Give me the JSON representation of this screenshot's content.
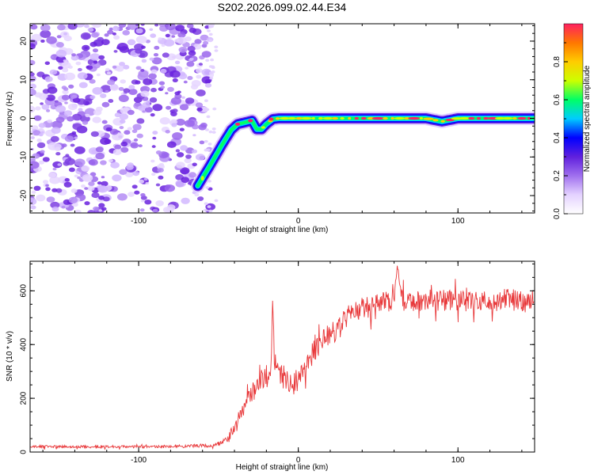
{
  "chart_data": [
    {
      "type": "heatmap",
      "title": "S202.2026.099.02.44.E34",
      "xlabel": "Height of straight line (km)",
      "ylabel": "Frequency (Hz)",
      "xlim": [
        -168,
        148
      ],
      "ylim": [
        -24.5,
        24.5
      ],
      "xticks": [
        -100,
        0,
        100
      ],
      "yticks": [
        -20,
        -10,
        0,
        10,
        20
      ],
      "noise_region_x": [
        -168,
        -58
      ],
      "ridge": {
        "x": [
          -63,
          -55,
          -48,
          -42,
          -38,
          -33,
          -29,
          -26,
          -23,
          -20,
          -16,
          -12,
          0,
          20,
          40,
          60,
          80,
          90,
          100,
          120,
          148
        ],
        "freq": [
          -17.5,
          -12,
          -7,
          -3,
          -1.5,
          -1,
          -0.6,
          -2.8,
          -2.8,
          -1.5,
          -0.2,
          0,
          0,
          0,
          0,
          0,
          0,
          -0.8,
          0,
          0,
          0
        ]
      },
      "colorbar": {
        "label": "Normalized spectral amplitude",
        "range": [
          0.0,
          1.0
        ],
        "ticks": [
          0.0,
          0.2,
          0.4,
          0.6,
          0.8
        ],
        "colormap": [
          "#ffffff",
          "#e4d2ff",
          "#a070ee",
          "#6020dd",
          "#0000ff",
          "#00ccff",
          "#00ff66",
          "#ccff00",
          "#ffcc00",
          "#ff7700",
          "#ff2060"
        ]
      }
    },
    {
      "type": "line",
      "xlabel": "Height of straight line (km)",
      "ylabel": "SNR (10 * v/v)",
      "xlim": [
        -168,
        148
      ],
      "ylim": [
        0,
        710
      ],
      "xticks": [
        -100,
        0,
        100
      ],
      "yticks": [
        0,
        200,
        400,
        600
      ],
      "series": [
        {
          "name": "SNR",
          "color": "#e8383a",
          "x": [
            -168,
            -150,
            -130,
            -110,
            -90,
            -70,
            -55,
            -50,
            -45,
            -42,
            -38,
            -35,
            -30,
            -25,
            -20,
            -18,
            -17,
            -16,
            -15,
            -12,
            -8,
            -5,
            0,
            5,
            10,
            15,
            20,
            25,
            30,
            35,
            40,
            45,
            50,
            55,
            60,
            62,
            65,
            70,
            75,
            80,
            90,
            100,
            110,
            120,
            130,
            140,
            148
          ],
          "y": [
            20,
            20,
            20,
            20,
            20,
            22,
            25,
            30,
            45,
            75,
            120,
            150,
            210,
            250,
            290,
            300,
            330,
            580,
            330,
            300,
            270,
            250,
            270,
            330,
            380,
            420,
            440,
            460,
            500,
            520,
            540,
            540,
            550,
            560,
            560,
            700,
            560,
            560,
            560,
            565,
            565,
            560,
            565,
            560,
            570,
            560,
            560
          ],
          "noise_amplitude": [
            5,
            5,
            5,
            5,
            5,
            6,
            7,
            8,
            12,
            18,
            25,
            30,
            35,
            40,
            45,
            45,
            45,
            10,
            45,
            45,
            45,
            45,
            45,
            45,
            45,
            45,
            45,
            45,
            40,
            40,
            40,
            40,
            40,
            40,
            40,
            5,
            40,
            40,
            40,
            40,
            40,
            40,
            40,
            40,
            40,
            40,
            40
          ]
        }
      ]
    }
  ]
}
